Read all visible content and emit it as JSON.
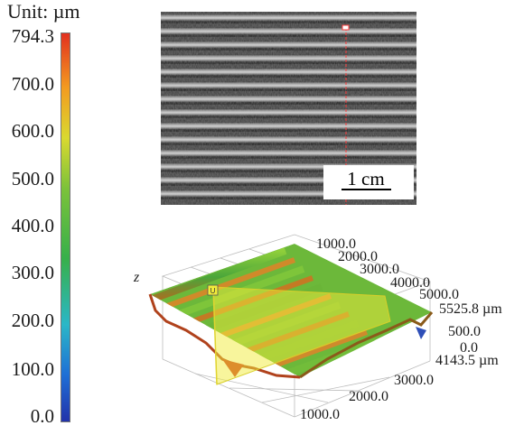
{
  "unit_label": "Unit: µm",
  "colorbar": {
    "ticks": [
      "794.3",
      "700.0",
      "600.0",
      "500.0",
      "400.0",
      "300.0",
      "200.0",
      "100.0",
      "0.0"
    ],
    "colors": [
      "#e2301f",
      "#f39b20",
      "#d9d930",
      "#7cc23a",
      "#37b04a",
      "#2bb7c7",
      "#1f6fd6",
      "#2233aa"
    ]
  },
  "photo": {
    "scale_bar_label": "1 cm",
    "marker_color": "#ff3b3b"
  },
  "surface": {
    "z_axis_label": "z",
    "marker_label": "U",
    "x_ticks": [
      "1000.0",
      "2000.0",
      "3000.0",
      "4000.0",
      "5000.0"
    ],
    "x_max": "5525.8 µm",
    "z_ticks": [
      "500.0",
      "0.0"
    ],
    "y_max": "4143.5 µm",
    "y_ticks": [
      "3000.0",
      "2000.0",
      "1000.0"
    ]
  }
}
